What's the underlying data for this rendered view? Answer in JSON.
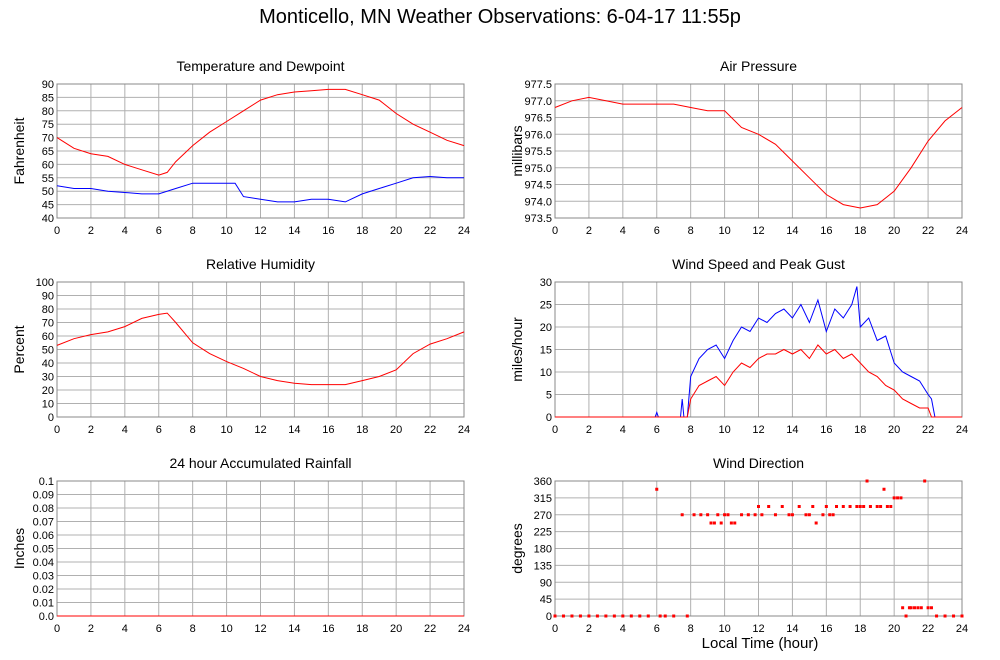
{
  "title": "Monticello, MN Weather Observations: 6-04-17 11:55p",
  "x_caption": "Local Time (hour)",
  "colors": {
    "red": "#ff0000",
    "blue": "#0000ff",
    "grid": "#b0b0b0",
    "frame": "#888888"
  },
  "chart_data": [
    {
      "id": "temperature",
      "type": "line",
      "title": "Temperature and Dewpoint",
      "ylabel": "Fahrenheit",
      "xlabel": "",
      "xlim": [
        0,
        24
      ],
      "ylim": [
        40,
        90
      ],
      "x_ticks": [
        0,
        2,
        4,
        6,
        8,
        10,
        12,
        14,
        16,
        18,
        20,
        22,
        24
      ],
      "y_ticks": [
        40,
        45,
        50,
        55,
        60,
        65,
        70,
        75,
        80,
        85,
        90
      ],
      "y_tick_labels": [
        "40",
        "45",
        "50",
        "55",
        "60",
        "65",
        "70",
        "75",
        "80",
        "85",
        "90"
      ],
      "grid": true,
      "series": [
        {
          "color": "#ff0000",
          "x": [
            0,
            1,
            2,
            3,
            4,
            5,
            6,
            6.5,
            7,
            8,
            9,
            10,
            11,
            12,
            13,
            14,
            15,
            16,
            17,
            18,
            19,
            20,
            21,
            22,
            23,
            24
          ],
          "y": [
            70,
            66,
            64,
            63,
            60,
            58,
            56,
            57,
            61,
            67,
            72,
            76,
            80,
            84,
            86,
            87,
            87.5,
            88,
            88,
            86,
            84,
            79,
            75,
            72,
            69,
            67
          ]
        },
        {
          "color": "#0000ff",
          "x": [
            0,
            1,
            2,
            3,
            4,
            5,
            6,
            7,
            8,
            9,
            10,
            10.5,
            11,
            12,
            13,
            14,
            15,
            16,
            17,
            18,
            19,
            20,
            21,
            22,
            23,
            24
          ],
          "y": [
            52,
            51,
            51,
            50,
            49.5,
            49,
            49,
            51,
            53,
            53,
            53,
            53,
            48,
            47,
            46,
            46,
            47,
            47,
            46,
            49,
            51,
            53,
            55,
            55.5,
            55,
            55
          ]
        }
      ]
    },
    {
      "id": "pressure",
      "type": "line",
      "title": "Air Pressure",
      "ylabel": "millibars",
      "xlabel": "",
      "xlim": [
        0,
        24
      ],
      "ylim": [
        973.5,
        977.5
      ],
      "x_ticks": [
        0,
        2,
        4,
        6,
        8,
        10,
        12,
        14,
        16,
        18,
        20,
        22,
        24
      ],
      "y_ticks": [
        973.5,
        974,
        974.5,
        975,
        975.5,
        976,
        976.5,
        977,
        977.5
      ],
      "y_tick_labels": [
        "973.5",
        "974.0",
        "974.5",
        "975.0",
        "975.5",
        "976.0",
        "976.5",
        "977.0",
        "977.5"
      ],
      "grid": true,
      "series": [
        {
          "color": "#ff0000",
          "x": [
            0,
            1,
            2,
            3,
            4,
            5,
            6,
            7,
            8,
            9,
            10,
            11,
            12,
            13,
            14,
            15,
            16,
            17,
            18,
            19,
            20,
            21,
            22,
            23,
            24
          ],
          "y": [
            976.8,
            977.0,
            977.1,
            977.0,
            976.9,
            976.9,
            976.9,
            976.9,
            976.8,
            976.7,
            976.7,
            976.2,
            976.0,
            975.7,
            975.2,
            974.7,
            974.2,
            973.9,
            973.8,
            973.9,
            974.3,
            975.0,
            975.8,
            976.4,
            976.8
          ]
        }
      ]
    },
    {
      "id": "humidity",
      "type": "line",
      "title": "Relative Humidity",
      "ylabel": "Percent",
      "xlabel": "",
      "xlim": [
        0,
        24
      ],
      "ylim": [
        0,
        100
      ],
      "x_ticks": [
        0,
        2,
        4,
        6,
        8,
        10,
        12,
        14,
        16,
        18,
        20,
        22,
        24
      ],
      "y_ticks": [
        0,
        10,
        20,
        30,
        40,
        50,
        60,
        70,
        80,
        90,
        100
      ],
      "y_tick_labels": [
        "0",
        "10",
        "20",
        "30",
        "40",
        "50",
        "60",
        "70",
        "80",
        "90",
        "100"
      ],
      "grid": true,
      "series": [
        {
          "color": "#ff0000",
          "x": [
            0,
            1,
            2,
            3,
            4,
            5,
            6,
            6.5,
            7,
            8,
            9,
            10,
            11,
            12,
            13,
            14,
            15,
            16,
            17,
            18,
            19,
            20,
            21,
            22,
            23,
            24
          ],
          "y": [
            53,
            58,
            61,
            63,
            67,
            73,
            76,
            77,
            70,
            55,
            47,
            41,
            36,
            30,
            27,
            25,
            24,
            24,
            24,
            27,
            30,
            35,
            47,
            54,
            58,
            63
          ]
        }
      ]
    },
    {
      "id": "wind-speed",
      "type": "line",
      "title": "Wind Speed and Peak Gust",
      "ylabel": "miles/hour",
      "xlabel": "",
      "xlim": [
        0,
        24
      ],
      "ylim": [
        0,
        30
      ],
      "x_ticks": [
        0,
        2,
        4,
        6,
        8,
        10,
        12,
        14,
        16,
        18,
        20,
        22,
        24
      ],
      "y_ticks": [
        0,
        5,
        10,
        15,
        20,
        25,
        30
      ],
      "y_tick_labels": [
        "0",
        "5",
        "10",
        "15",
        "20",
        "25",
        "30"
      ],
      "grid": true,
      "series": [
        {
          "color": "#0000ff",
          "x": [
            0,
            5.9,
            6,
            6.1,
            7.4,
            7.5,
            7.6,
            7.8,
            8,
            8.5,
            9,
            9.5,
            10,
            10.5,
            11,
            11.5,
            12,
            12.5,
            13,
            13.5,
            14,
            14.5,
            15,
            15.5,
            16,
            16.5,
            17,
            17.5,
            17.8,
            18,
            18.5,
            19,
            19.5,
            20,
            20.5,
            21,
            21.5,
            22,
            22.2,
            22.4,
            24
          ],
          "y": [
            0,
            0,
            1,
            0,
            0,
            4,
            0,
            0,
            9,
            13,
            15,
            16,
            13,
            17,
            20,
            19,
            22,
            21,
            23,
            24,
            22,
            25,
            21,
            26,
            19,
            24,
            22,
            25,
            29,
            20,
            22,
            17,
            18,
            12,
            10,
            9,
            8,
            5,
            4,
            0,
            0
          ]
        },
        {
          "color": "#ff0000",
          "x": [
            0,
            7.8,
            8,
            8.5,
            9,
            9.5,
            10,
            10.5,
            11,
            11.5,
            12,
            12.5,
            13,
            13.5,
            14,
            14.5,
            15,
            15.5,
            16,
            16.5,
            17,
            17.5,
            18,
            18.5,
            19,
            19.5,
            20,
            20.5,
            21,
            21.5,
            22,
            22.2,
            24
          ],
          "y": [
            0,
            0,
            4,
            7,
            8,
            9,
            7,
            10,
            12,
            11,
            13,
            14,
            14,
            15,
            14,
            15,
            13,
            16,
            14,
            15,
            13,
            14,
            12,
            10,
            9,
            7,
            6,
            4,
            3,
            2,
            2,
            0,
            0
          ]
        }
      ]
    },
    {
      "id": "rainfall",
      "type": "line",
      "title": "24 hour Accumulated Rainfall",
      "ylabel": "Inches",
      "xlabel": "",
      "xlim": [
        0,
        24
      ],
      "ylim": [
        0,
        0.1
      ],
      "x_ticks": [
        0,
        2,
        4,
        6,
        8,
        10,
        12,
        14,
        16,
        18,
        20,
        22,
        24
      ],
      "y_ticks": [
        0,
        0.01,
        0.02,
        0.03,
        0.04,
        0.05,
        0.06,
        0.07,
        0.08,
        0.09,
        0.1
      ],
      "y_tick_labels": [
        "0.0",
        "0.01",
        "0.02",
        "0.03",
        "0.04",
        "0.05",
        "0.06",
        "0.07",
        "0.08",
        "0.09",
        "0.1"
      ],
      "grid": true,
      "series": [
        {
          "color": "#ff0000",
          "x": [
            0,
            24
          ],
          "y": [
            0,
            0
          ]
        }
      ]
    },
    {
      "id": "wind-direction",
      "type": "scatter",
      "title": "Wind Direction",
      "ylabel": "degrees",
      "xlabel": "Local Time (hour)",
      "xlim": [
        0,
        24
      ],
      "ylim": [
        0,
        360
      ],
      "x_ticks": [
        0,
        2,
        4,
        6,
        8,
        10,
        12,
        14,
        16,
        18,
        20,
        22,
        24
      ],
      "y_ticks": [
        0,
        45,
        90,
        135,
        180,
        225,
        270,
        315,
        360
      ],
      "y_tick_labels": [
        "0",
        "45",
        "90",
        "135",
        "180",
        "225",
        "270",
        "315",
        "360"
      ],
      "grid": true,
      "series": [
        {
          "color": "#ff0000",
          "x": [
            0,
            0.5,
            1,
            1.5,
            2,
            2.5,
            3,
            3.5,
            4,
            4.5,
            5,
            5.5,
            6,
            6.2,
            6.5,
            7,
            7.5,
            7.8,
            8.2,
            8.6,
            9,
            9.2,
            9.4,
            9.6,
            9.8,
            10,
            10.2,
            10.4,
            10.6,
            11,
            11.4,
            11.8,
            12,
            12.2,
            12.6,
            13,
            13.4,
            13.8,
            14,
            14.4,
            14.8,
            15,
            15.2,
            15.4,
            15.8,
            16,
            16.2,
            16.4,
            16.6,
            17,
            17.4,
            17.8,
            18,
            18.2,
            18.4,
            18.6,
            19,
            19.2,
            19.4,
            19.6,
            19.8,
            20,
            20.2,
            20.4,
            20.5,
            20.7,
            20.9,
            21,
            21.2,
            21.4,
            21.6,
            21.8,
            22,
            22.2,
            22.5,
            23,
            23.5,
            24
          ],
          "y": [
            0,
            0,
            0,
            0,
            0,
            0,
            0,
            0,
            0,
            0,
            0,
            0,
            338,
            0,
            0,
            0,
            270,
            0,
            270,
            270,
            270,
            248,
            248,
            270,
            248,
            270,
            270,
            248,
            248,
            270,
            270,
            270,
            292,
            270,
            292,
            270,
            292,
            270,
            270,
            292,
            270,
            270,
            292,
            248,
            270,
            292,
            270,
            270,
            292,
            292,
            292,
            292,
            292,
            292,
            360,
            292,
            292,
            292,
            338,
            292,
            292,
            315,
            315,
            315,
            22,
            0,
            22,
            22,
            22,
            22,
            22,
            360,
            22,
            22,
            0,
            0,
            0,
            0
          ]
        }
      ]
    }
  ]
}
